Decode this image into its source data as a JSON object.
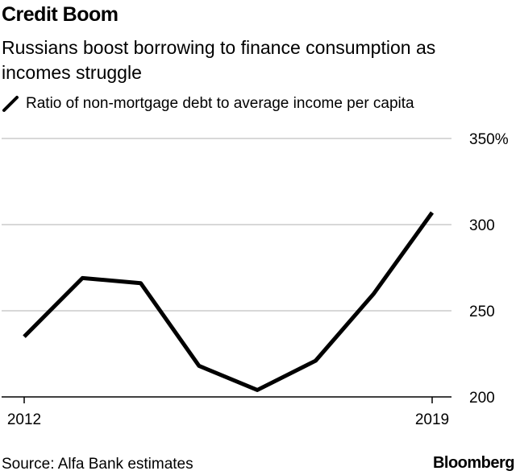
{
  "header": {
    "title": "Credit Boom",
    "subtitle": "Russians boost borrowing to finance consumption as incomes struggle",
    "legend_label": "Ratio of non-mortgage debt to average income per capita"
  },
  "footer": {
    "source": "Source: Alfa Bank estimates",
    "brand": "Bloomberg"
  },
  "colors": {
    "line": "#000000",
    "grid": "#cccccc"
  },
  "chart_data": {
    "type": "line",
    "title": "Credit Boom",
    "subtitle": "Russians boost borrowing to finance consumption as incomes struggle",
    "x": [
      2012,
      2013,
      2014,
      2015,
      2016,
      2017,
      2018,
      2019
    ],
    "x_tick_labels": [
      "2012",
      "2019"
    ],
    "series": [
      {
        "name": "Ratio of non-mortgage debt to average income per capita",
        "values": [
          235,
          269,
          266,
          218,
          204,
          221,
          260,
          307
        ]
      }
    ],
    "y_ticks": [
      200,
      250,
      300,
      350
    ],
    "y_tick_labels": [
      "200",
      "250",
      "300",
      "350%"
    ],
    "ylim": [
      200,
      350
    ],
    "xlim": [
      2012,
      2019
    ],
    "grid": true,
    "y_axis_side": "right"
  }
}
